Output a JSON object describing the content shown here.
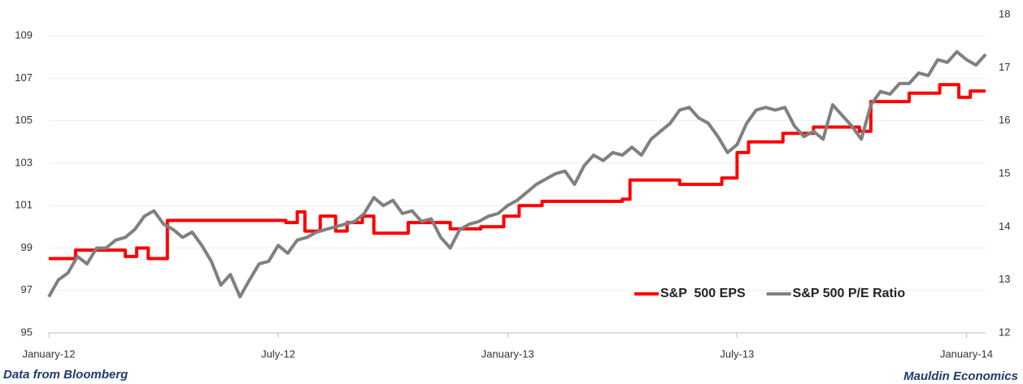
{
  "chart_data": {
    "type": "line",
    "xlim": [
      0,
      24.5
    ],
    "xticks": [
      {
        "value": 0,
        "label": "January-12"
      },
      {
        "value": 6,
        "label": "July-12"
      },
      {
        "value": 12,
        "label": "January-13"
      },
      {
        "value": 18,
        "label": "July-13"
      },
      {
        "value": 24,
        "label": "January-14"
      }
    ],
    "ylim": [
      95,
      110
    ],
    "yticks": [
      95,
      97,
      99,
      101,
      103,
      105,
      107,
      109
    ],
    "y2lim": [
      12,
      18
    ],
    "y2ticks": [
      12,
      13,
      14,
      15,
      16,
      17,
      18
    ],
    "grid": true,
    "legend": "lower right",
    "series": [
      {
        "name": "S&P  500 EPS",
        "color": "#ff0000",
        "x": [
          0,
          0.7,
          0.7,
          2.0,
          2.0,
          2.3,
          2.3,
          2.6,
          2.6,
          3.1,
          3.1,
          6.2,
          6.2,
          6.5,
          6.5,
          6.7,
          6.7,
          7.1,
          7.1,
          7.5,
          7.5,
          7.8,
          7.8,
          8.2,
          8.2,
          8.5,
          8.5,
          9.4,
          9.4,
          10.5,
          10.5,
          11.3,
          11.3,
          11.9,
          11.9,
          12.3,
          12.3,
          12.9,
          12.9,
          15.0,
          15.0,
          15.2,
          15.2,
          16.5,
          16.5,
          17.6,
          17.6,
          18.0,
          18.0,
          18.3,
          18.3,
          19.2,
          19.2,
          20.0,
          20.0,
          21.2,
          21.2,
          21.5,
          21.5,
          22.5,
          22.5,
          23.3,
          23.3,
          23.8,
          23.8,
          24.1,
          24.1,
          24.5
        ],
        "values": [
          98.5,
          98.5,
          98.9,
          98.9,
          98.6,
          98.6,
          99.0,
          99.0,
          98.5,
          98.5,
          100.3,
          100.3,
          100.2,
          100.2,
          100.7,
          100.7,
          99.8,
          99.8,
          100.5,
          100.5,
          99.8,
          99.8,
          100.2,
          100.2,
          100.5,
          100.5,
          99.7,
          99.7,
          100.2,
          100.2,
          99.9,
          99.9,
          100.0,
          100.0,
          100.5,
          100.5,
          101.0,
          101.0,
          101.2,
          101.2,
          101.3,
          101.3,
          102.2,
          102.2,
          102.0,
          102.0,
          102.3,
          102.3,
          103.5,
          103.5,
          104.0,
          104.0,
          104.4,
          104.4,
          104.7,
          104.7,
          104.5,
          104.5,
          105.9,
          105.9,
          106.3,
          106.3,
          106.7,
          106.7,
          106.1,
          106.1,
          106.4,
          106.4
        ]
      },
      {
        "name": "S&P 500 P/E Ratio",
        "color": "#808080",
        "axis": "y2",
        "x": [
          0,
          0.25,
          0.5,
          0.75,
          1,
          1.25,
          1.5,
          1.75,
          2,
          2.25,
          2.5,
          2.75,
          3,
          3.25,
          3.5,
          3.75,
          4,
          4.25,
          4.5,
          4.75,
          5,
          5.25,
          5.5,
          5.75,
          6,
          6.25,
          6.5,
          6.75,
          7,
          7.25,
          7.5,
          7.75,
          8,
          8.25,
          8.5,
          8.75,
          9,
          9.25,
          9.5,
          9.75,
          10,
          10.25,
          10.5,
          10.75,
          11,
          11.25,
          11.5,
          11.75,
          12,
          12.25,
          12.5,
          12.75,
          13,
          13.25,
          13.5,
          13.75,
          14,
          14.25,
          14.5,
          14.75,
          15,
          15.25,
          15.5,
          15.75,
          16,
          16.25,
          16.5,
          16.75,
          17,
          17.25,
          17.5,
          17.75,
          18,
          18.25,
          18.5,
          18.75,
          19,
          19.25,
          19.5,
          19.75,
          20,
          20.25,
          20.5,
          20.75,
          21,
          21.25,
          21.5,
          21.75,
          22,
          22.25,
          22.5,
          22.75,
          23,
          23.25,
          23.5,
          23.75,
          24,
          24.25,
          24.5
        ],
        "values": [
          12.68,
          13.0,
          13.13,
          13.44,
          13.3,
          13.6,
          13.6,
          13.75,
          13.8,
          13.95,
          14.2,
          14.3,
          14.05,
          13.95,
          13.8,
          13.9,
          13.65,
          13.35,
          12.9,
          13.1,
          12.68,
          13.0,
          13.3,
          13.35,
          13.65,
          13.5,
          13.75,
          13.8,
          13.9,
          13.95,
          14.0,
          14.05,
          14.1,
          14.25,
          14.55,
          14.4,
          14.5,
          14.25,
          14.3,
          14.1,
          14.15,
          13.8,
          13.6,
          13.95,
          14.05,
          14.1,
          14.2,
          14.25,
          14.4,
          14.5,
          14.65,
          14.8,
          14.9,
          15.0,
          15.05,
          14.8,
          15.15,
          15.35,
          15.25,
          15.4,
          15.35,
          15.5,
          15.35,
          15.65,
          15.8,
          15.95,
          16.2,
          16.25,
          16.05,
          15.95,
          15.7,
          15.4,
          15.55,
          15.95,
          16.2,
          16.25,
          16.2,
          16.25,
          15.9,
          15.7,
          15.8,
          15.65,
          16.3,
          16.1,
          15.9,
          15.65,
          16.3,
          16.55,
          16.5,
          16.7,
          16.7,
          16.9,
          16.85,
          17.15,
          17.1,
          17.3,
          17.15,
          17.05,
          17.25
        ]
      }
    ]
  },
  "footer": {
    "left": "Data from Bloomberg",
    "right": "Mauldin Economics"
  }
}
